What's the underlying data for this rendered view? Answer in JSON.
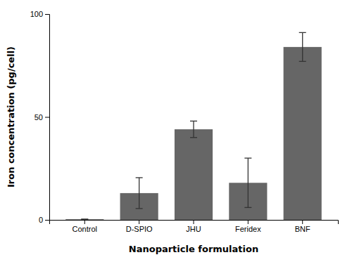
{
  "chart_data": {
    "type": "bar",
    "categories": [
      "Control",
      "D-SPIO",
      "JHU",
      "Feridex",
      "BNF"
    ],
    "values": [
      0.3,
      13.0,
      44.0,
      18.0,
      84.0
    ],
    "errors": [
      0.0,
      7.5,
      4.0,
      12.0,
      7.0
    ],
    "color": "#666666",
    "xlabel": "Nanoparticle formulation",
    "ylabel": "Iron concentration (pg/cell)",
    "ylim": [
      0,
      100
    ],
    "yticks": [
      0,
      50,
      100
    ],
    "grid": false
  }
}
